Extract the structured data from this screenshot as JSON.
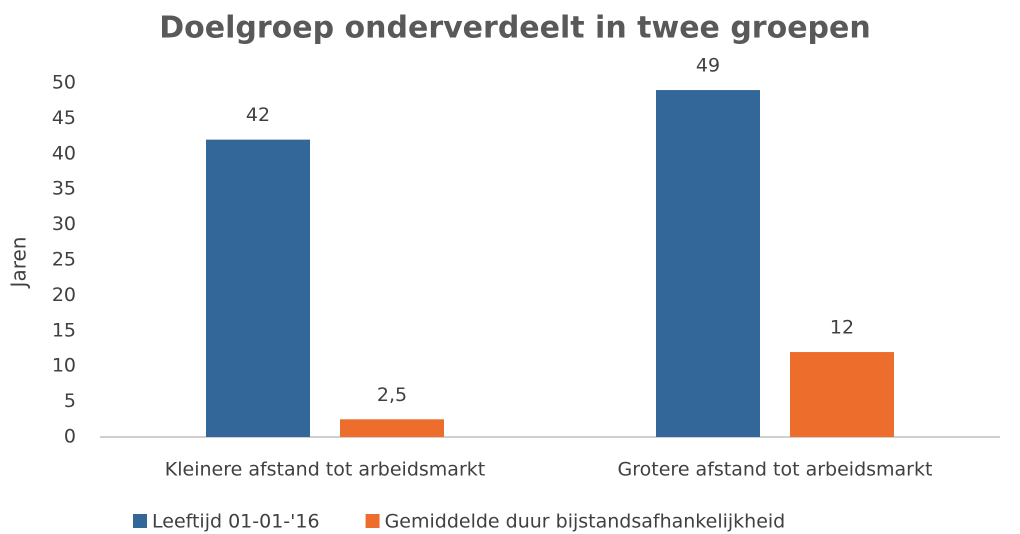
{
  "chart_data": {
    "type": "bar",
    "title": "Doelgroep onderverdeelt in twee groepen",
    "y_label": "Jaren",
    "categories": [
      "Kleinere afstand tot arbeidsmarkt",
      "Grotere afstand tot arbeidsmarkt"
    ],
    "series": [
      {
        "name": "Leeftijd 01-01-'16",
        "color": "#336699",
        "values": [
          42,
          49
        ]
      },
      {
        "name": "Gemiddelde duur bijstandsafhankelijkheid",
        "color": "#ed6d2d",
        "values": [
          2.5,
          12
        ],
        "value_labels": [
          "2,5",
          "12"
        ]
      }
    ],
    "ylim": [
      0,
      50
    ],
    "yticks": [
      0,
      5,
      10,
      15,
      20,
      25,
      30,
      35,
      40,
      45,
      50
    ],
    "grid": false,
    "legend": "bottom"
  }
}
